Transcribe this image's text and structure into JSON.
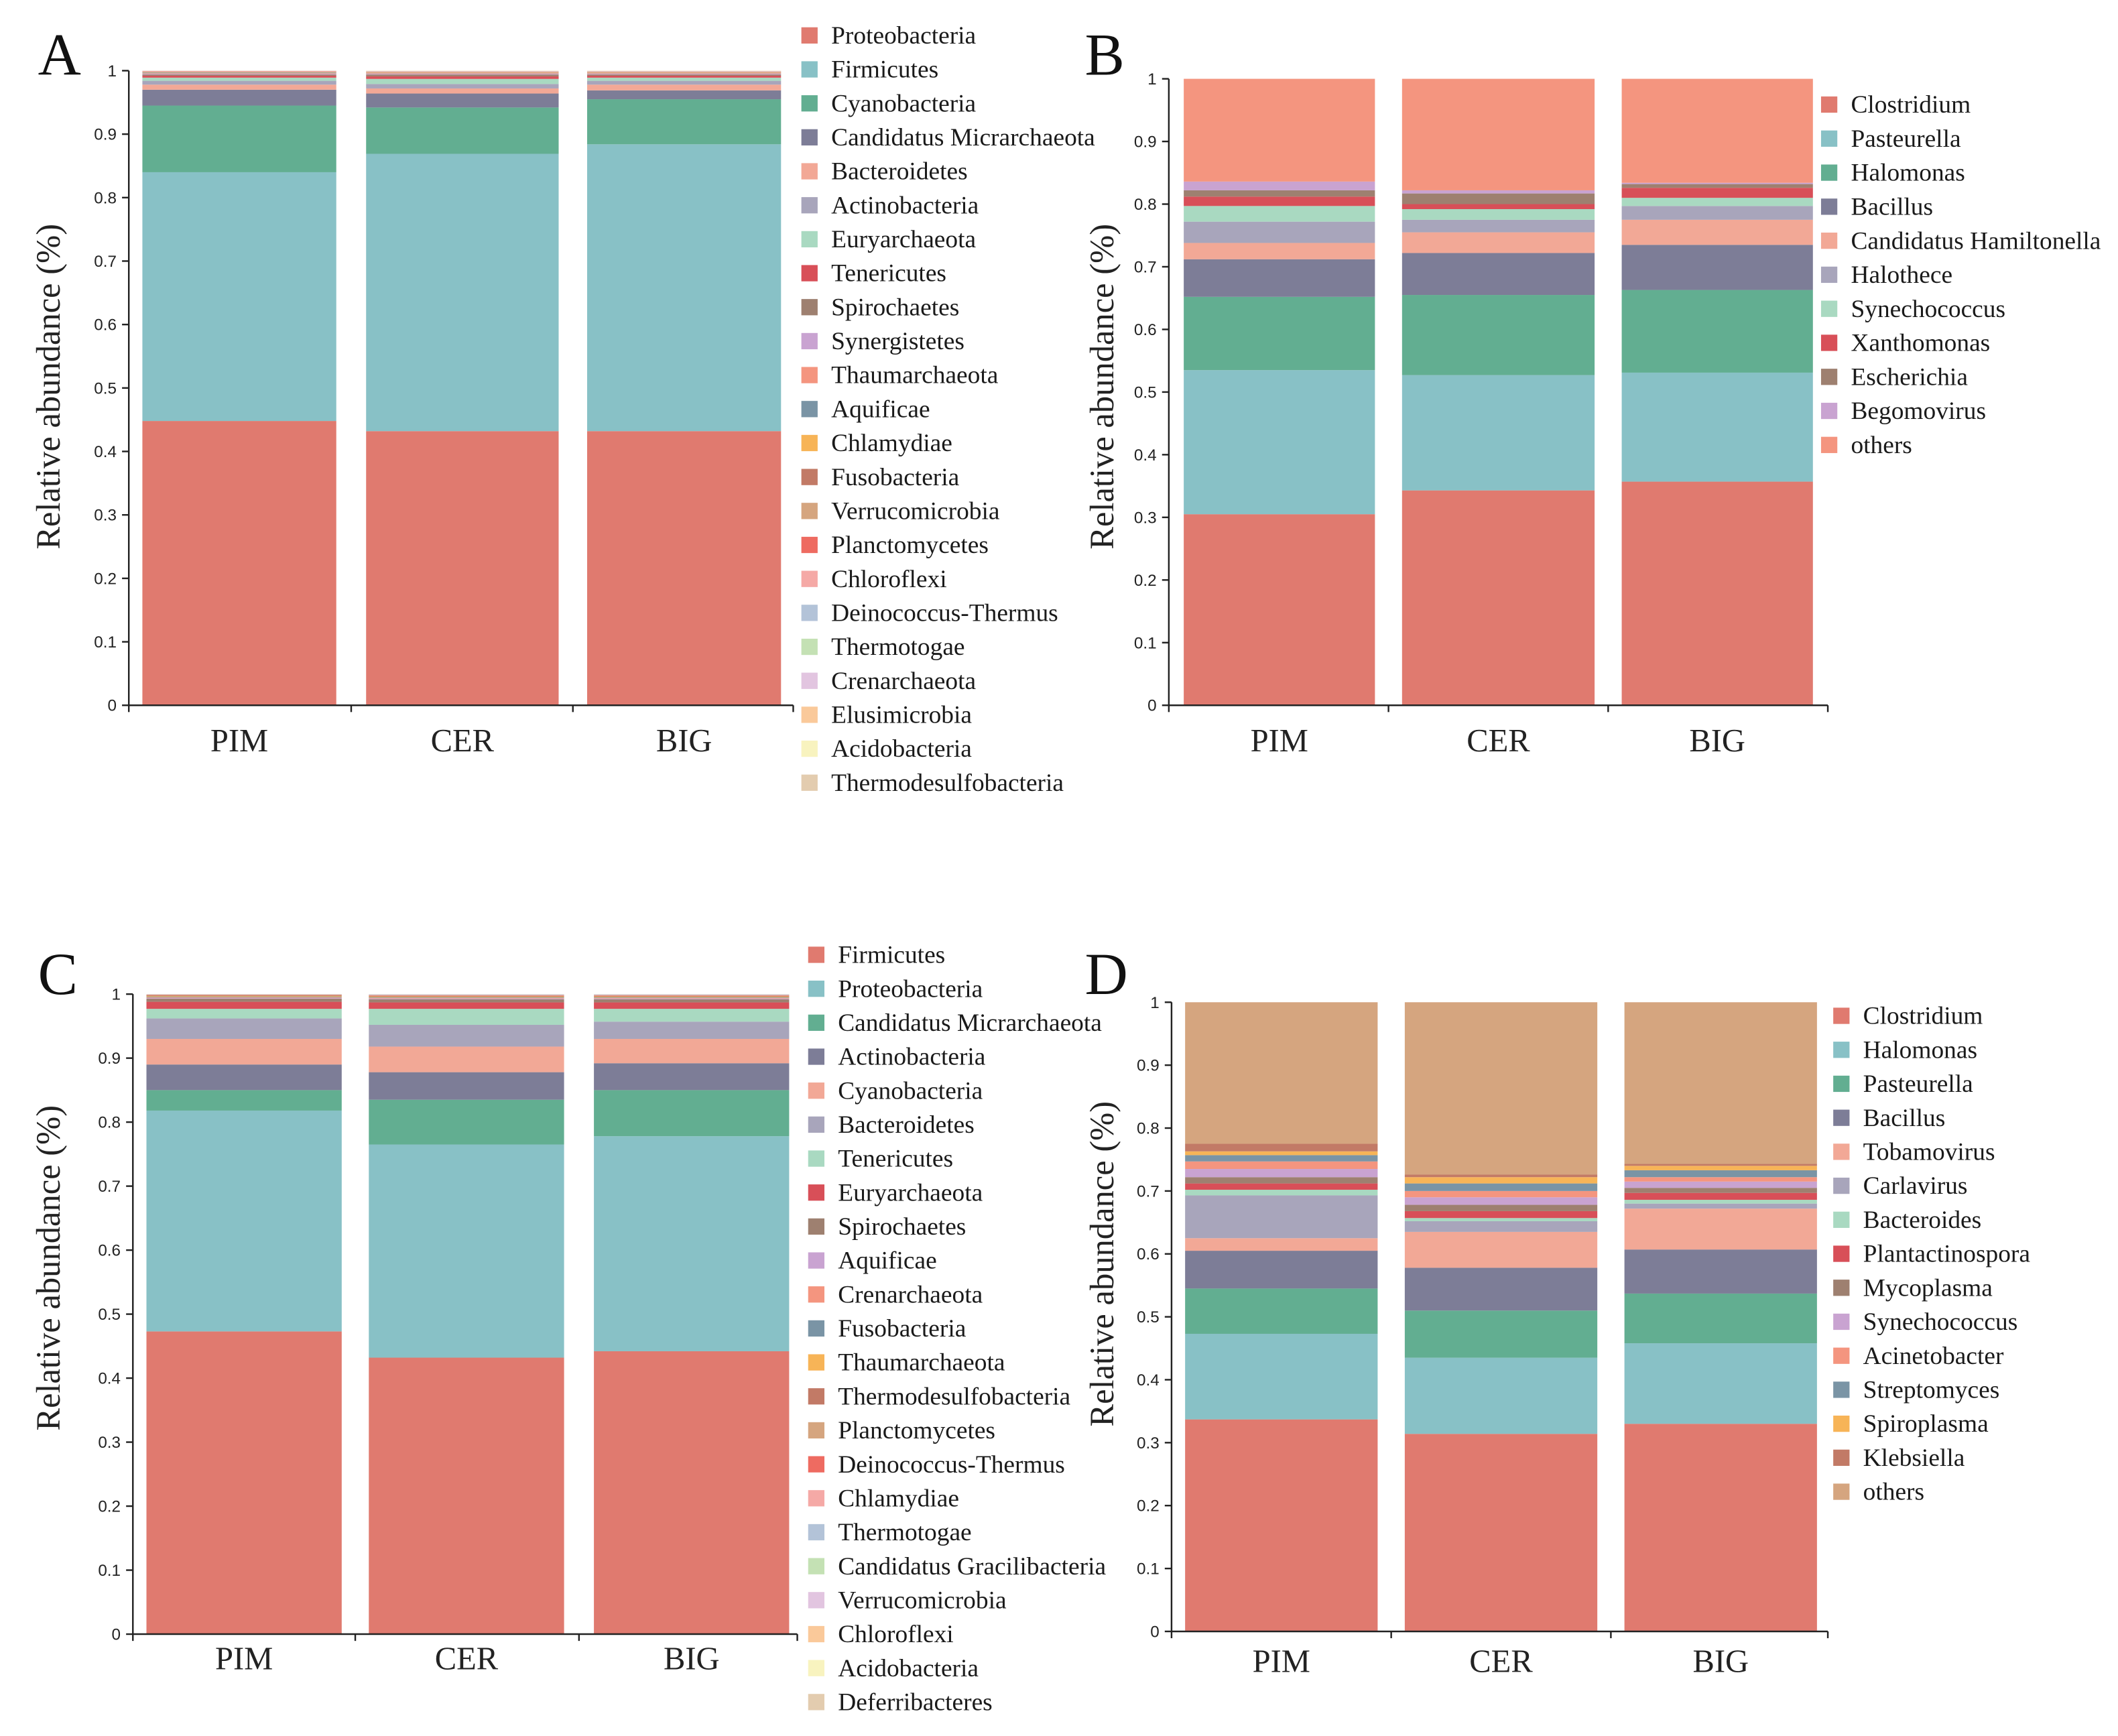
{
  "palette": [
    "#E07A6F",
    "#88C1C6",
    "#62AE91",
    "#7D7D97",
    "#F2A896",
    "#A8A5BB",
    "#A9D9C1",
    "#D84F58",
    "#9E8070",
    "#C9A3D1",
    "#F4957F",
    "#7A94A5",
    "#F7B457",
    "#C27A66",
    "#D5A57F",
    "#EE6B61",
    "#F5A9A6",
    "#B3C3D8",
    "#C4E1B4",
    "#E2C5E0",
    "#FAC99A",
    "#F8F3BF",
    "#E3CCAF"
  ],
  "chart_data": [
    {
      "panel": "A",
      "type": "bar",
      "stacked": true,
      "categories": [
        "PIM",
        "CER",
        "BIG"
      ],
      "ylabel": "Relative abundance (%)",
      "ylim": [
        0,
        1
      ],
      "yticks": [
        "0",
        "0.1",
        "0.2",
        "0.3",
        "0.4",
        "0.5",
        "0.6",
        "0.7",
        "0.8",
        "0.9",
        "1"
      ],
      "series": [
        {
          "name": "Proteobacteria",
          "values": [
            0.448,
            0.432,
            0.432
          ]
        },
        {
          "name": "Firmicutes",
          "values": [
            0.392,
            0.437,
            0.452
          ]
        },
        {
          "name": "Cyanobacteria",
          "values": [
            0.105,
            0.073,
            0.071
          ]
        },
        {
          "name": "Candidatus Micrarchaeota",
          "values": [
            0.025,
            0.022,
            0.014
          ]
        },
        {
          "name": "Bacteroidetes",
          "values": [
            0.008,
            0.008,
            0.009
          ]
        },
        {
          "name": "Actinobacteria",
          "values": [
            0.006,
            0.007,
            0.006
          ]
        },
        {
          "name": "Euryarchaeota",
          "values": [
            0.005,
            0.008,
            0.005
          ]
        },
        {
          "name": "Tenericutes",
          "values": [
            0.003,
            0.004,
            0.003
          ]
        },
        {
          "name": "Spirochaetes",
          "values": [
            0.002,
            0.003,
            0.002
          ]
        },
        {
          "name": "Synergistetes",
          "values": [
            0.001,
            0.001,
            0.001
          ]
        },
        {
          "name": "Thaumarchaeota",
          "values": [
            0.001,
            0.001,
            0.001
          ]
        },
        {
          "name": "Aquificae",
          "values": [
            0.001,
            0.0005,
            0.0005
          ]
        },
        {
          "name": "Chlamydiae",
          "values": [
            0.0005,
            0.0005,
            0.0005
          ]
        },
        {
          "name": "Fusobacteria",
          "values": [
            0.0005,
            0.0005,
            0.0005
          ]
        },
        {
          "name": "Verrucomicrobia",
          "values": [
            0.0005,
            0.0005,
            0.0005
          ]
        },
        {
          "name": "Planctomycetes",
          "values": [
            0.0005,
            0.0005,
            0.0005
          ]
        },
        {
          "name": "Chloroflexi",
          "values": [
            0.0003,
            0.0003,
            0.0003
          ]
        },
        {
          "name": "Deinococcus-Thermus",
          "values": [
            0.0003,
            0.0003,
            0.0003
          ]
        },
        {
          "name": "Thermotogae",
          "values": [
            0.0002,
            0.0002,
            0.0002
          ]
        },
        {
          "name": "Crenarchaeota",
          "values": [
            0.0002,
            0.0002,
            0.0002
          ]
        },
        {
          "name": "Elusimicrobia",
          "values": [
            0.0001,
            0.0001,
            0.0001
          ]
        },
        {
          "name": "Acidobacteria",
          "values": [
            0.0001,
            0.0001,
            0.0001
          ]
        },
        {
          "name": "Thermodesulfobacteria",
          "values": [
            0.0001,
            0.0001,
            0.0001
          ]
        }
      ]
    },
    {
      "panel": "B",
      "type": "bar",
      "stacked": true,
      "categories": [
        "PIM",
        "CER",
        "BIG"
      ],
      "ylabel": "Relative abundance (%)",
      "ylim": [
        0,
        1
      ],
      "yticks": [
        "0",
        "0.1",
        "0.2",
        "0.3",
        "0.4",
        "0.5",
        "0.6",
        "0.7",
        "0.8",
        "0.9",
        "1"
      ],
      "series": [
        {
          "name": "Clostridium",
          "values": [
            0.305,
            0.343,
            0.357
          ]
        },
        {
          "name": "Pasteurella",
          "values": [
            0.23,
            0.184,
            0.174
          ]
        },
        {
          "name": "Halomonas",
          "values": [
            0.117,
            0.128,
            0.132
          ]
        },
        {
          "name": "Bacillus",
          "values": [
            0.06,
            0.067,
            0.072
          ]
        },
        {
          "name": "Candidatus Hamiltonella",
          "values": [
            0.026,
            0.033,
            0.04
          ]
        },
        {
          "name": "Halothece",
          "values": [
            0.034,
            0.02,
            0.022
          ]
        },
        {
          "name": "Synechococcus",
          "values": [
            0.025,
            0.017,
            0.013
          ]
        },
        {
          "name": "Xanthomonas",
          "values": [
            0.015,
            0.008,
            0.016
          ]
        },
        {
          "name": "Escherichia",
          "values": [
            0.01,
            0.017,
            0.006
          ]
        },
        {
          "name": "Begomovirus",
          "values": [
            0.014,
            0.005,
            0.002
          ]
        },
        {
          "name": "others",
          "values": [
            0.164,
            0.178,
            0.166
          ]
        }
      ]
    },
    {
      "panel": "C",
      "type": "bar",
      "stacked": true,
      "categories": [
        "PIM",
        "CER",
        "BIG"
      ],
      "ylabel": "Relative abundance (%)",
      "ylim": [
        0,
        1
      ],
      "yticks": [
        "0",
        "0.1",
        "0.2",
        "0.3",
        "0.4",
        "0.5",
        "0.6",
        "0.7",
        "0.8",
        "0.9",
        "1"
      ],
      "series": [
        {
          "name": "Firmicutes",
          "values": [
            0.473,
            0.432,
            0.442
          ]
        },
        {
          "name": "Proteobacteria",
          "values": [
            0.345,
            0.333,
            0.336
          ]
        },
        {
          "name": "Candidatus Micrarchaeota",
          "values": [
            0.032,
            0.07,
            0.072
          ]
        },
        {
          "name": "Actinobacteria",
          "values": [
            0.04,
            0.043,
            0.042
          ]
        },
        {
          "name": "Cyanobacteria",
          "values": [
            0.04,
            0.04,
            0.038
          ]
        },
        {
          "name": "Bacteroidetes",
          "values": [
            0.032,
            0.034,
            0.027
          ]
        },
        {
          "name": "Tenericutes",
          "values": [
            0.015,
            0.025,
            0.02
          ]
        },
        {
          "name": "Euryarchaeota",
          "values": [
            0.011,
            0.01,
            0.01
          ]
        },
        {
          "name": "Spirochaetes",
          "values": [
            0.005,
            0.005,
            0.005
          ]
        },
        {
          "name": "Aquificae",
          "values": [
            0.001,
            0.001,
            0.001
          ]
        },
        {
          "name": "Crenarchaeota",
          "values": [
            0.001,
            0.001,
            0.001
          ]
        },
        {
          "name": "Fusobacteria",
          "values": [
            0.001,
            0.001,
            0.001
          ]
        },
        {
          "name": "Thaumarchaeota",
          "values": [
            0.001,
            0.001,
            0.001
          ]
        },
        {
          "name": "Thermodesulfobacteria",
          "values": [
            0.001,
            0.001,
            0.001
          ]
        },
        {
          "name": "Planctomycetes",
          "values": [
            0.0005,
            0.0006,
            0.0006
          ]
        },
        {
          "name": "Deinococcus-Thermus",
          "values": [
            0.0005,
            0.0006,
            0.0006
          ]
        },
        {
          "name": "Chlamydiae",
          "values": [
            0.0004,
            0.0005,
            0.0005
          ]
        },
        {
          "name": "Thermotogae",
          "values": [
            0.0004,
            0.0005,
            0.0005
          ]
        },
        {
          "name": "Candidatus Gracilibacteria",
          "values": [
            0.0003,
            0.0004,
            0.0004
          ]
        },
        {
          "name": "Verrucomicrobia",
          "values": [
            0.0003,
            0.0004,
            0.0004
          ]
        },
        {
          "name": "Chloroflexi",
          "values": [
            0.0002,
            0.0003,
            0.0003
          ]
        },
        {
          "name": "Acidobacteria",
          "values": [
            0.0002,
            0.0002,
            0.0002
          ]
        },
        {
          "name": "Deferribacteres",
          "values": [
            0.0002,
            0.0002,
            0.0002
          ]
        }
      ]
    },
    {
      "panel": "D",
      "type": "bar",
      "stacked": true,
      "categories": [
        "PIM",
        "CER",
        "BIG"
      ],
      "ylabel": "Relative abundance (%)",
      "ylim": [
        0,
        1
      ],
      "yticks": [
        "0",
        "0.1",
        "0.2",
        "0.3",
        "0.4",
        "0.5",
        "0.6",
        "0.7",
        "0.8",
        "0.9",
        "1"
      ],
      "series": [
        {
          "name": "Clostridium",
          "values": [
            0.337,
            0.314,
            0.33
          ]
        },
        {
          "name": "Halomonas",
          "values": [
            0.136,
            0.121,
            0.128
          ]
        },
        {
          "name": "Pasteurella",
          "values": [
            0.072,
            0.075,
            0.079
          ]
        },
        {
          "name": "Bacillus",
          "values": [
            0.06,
            0.068,
            0.07
          ]
        },
        {
          "name": "Tobamovirus",
          "values": [
            0.02,
            0.057,
            0.065
          ]
        },
        {
          "name": "Carlavirus",
          "values": [
            0.068,
            0.017,
            0.008
          ]
        },
        {
          "name": "Bacteroides",
          "values": [
            0.009,
            0.005,
            0.006
          ]
        },
        {
          "name": "Plantactinospora",
          "values": [
            0.01,
            0.011,
            0.011
          ]
        },
        {
          "name": "Mycoplasma",
          "values": [
            0.01,
            0.01,
            0.008
          ]
        },
        {
          "name": "Synechococcus",
          "values": [
            0.013,
            0.012,
            0.01
          ]
        },
        {
          "name": "Acinetobacter",
          "values": [
            0.012,
            0.01,
            0.007
          ]
        },
        {
          "name": "Streptomyces",
          "values": [
            0.01,
            0.012,
            0.011
          ]
        },
        {
          "name": "Spiroplasma",
          "values": [
            0.006,
            0.01,
            0.007
          ]
        },
        {
          "name": "Klebsiella",
          "values": [
            0.012,
            0.004,
            0.003
          ]
        },
        {
          "name": "others",
          "values": [
            0.225,
            0.274,
            0.257
          ]
        }
      ]
    }
  ]
}
